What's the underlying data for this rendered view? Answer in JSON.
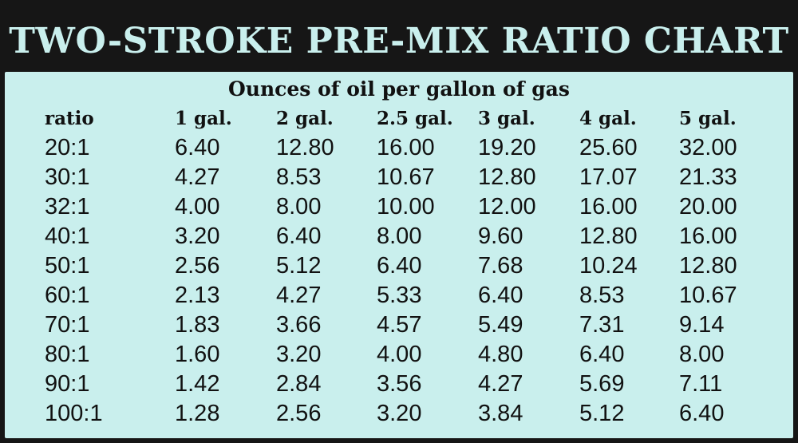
{
  "title": "TWO-STROKE PRE-MIX RATIO CHART",
  "subtitle": "Ounces of oil per gallon of gas",
  "columns": [
    "ratio",
    "1 gal.",
    "2 gal.",
    "2.5 gal.",
    "3 gal.",
    "4 gal.",
    "5 gal."
  ],
  "rows": [
    [
      "20:1",
      "6.40",
      "12.80",
      "16.00",
      "19.20",
      "25.60",
      "32.00"
    ],
    [
      "30:1",
      "4.27",
      "8.53",
      "10.67",
      "12.80",
      "17.07",
      "21.33"
    ],
    [
      "32:1",
      "4.00",
      "8.00",
      "10.00",
      "12.00",
      "16.00",
      "20.00"
    ],
    [
      "40:1",
      "3.20",
      "6.40",
      "8.00",
      "9.60",
      "12.80",
      "16.00"
    ],
    [
      "50:1",
      "2.56",
      "5.12",
      "6.40",
      "7.68",
      "10.24",
      "12.80"
    ],
    [
      "60:1",
      "2.13",
      "4.27",
      "5.33",
      "6.40",
      "8.53",
      "10.67"
    ],
    [
      "70:1",
      "1.83",
      "3.66",
      "4.57",
      "5.49",
      "7.31",
      "9.14"
    ],
    [
      "80:1",
      "1.60",
      "3.20",
      "4.00",
      "4.80",
      "6.40",
      "8.00"
    ],
    [
      "90:1",
      "1.42",
      "2.84",
      "3.56",
      "4.27",
      "5.69",
      "7.11"
    ],
    [
      "100:1",
      "1.28",
      "2.56",
      "3.20",
      "3.84",
      "5.12",
      "6.40"
    ]
  ],
  "colors": {
    "frame": "#161616",
    "panel": "#c9efed",
    "title_text": "#c9efed",
    "body_text": "#111111"
  }
}
